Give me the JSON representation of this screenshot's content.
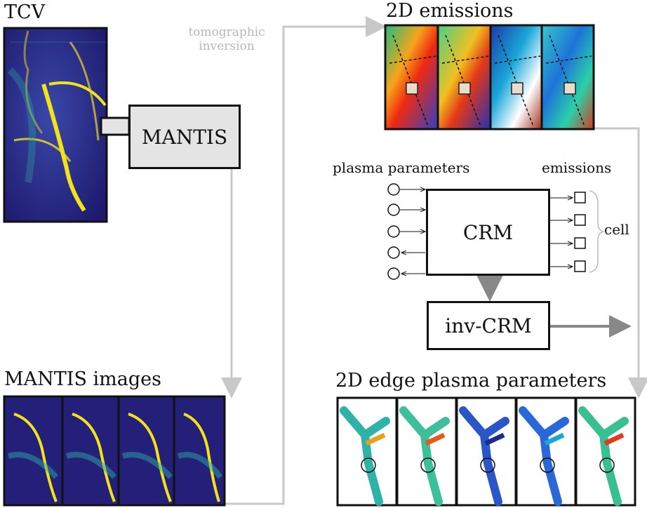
{
  "titles": {
    "tcv": "TCV",
    "emissions2d": "2D emissions",
    "mantis_images": "MANTIS images",
    "edge_params": "2D edge plasma parameters"
  },
  "labels": {
    "tomographic": "tomographic",
    "inversion": "inversion",
    "plasma_parameters": "plasma parameters",
    "emissions": "emissions",
    "cell": "cell"
  },
  "boxes": {
    "mantis": "MANTIS",
    "crm": "CRM",
    "inv_crm": "inv-CRM"
  },
  "colors": {
    "camera_bg": "#2a1f78",
    "camera_yellow": "#f2e21a",
    "camera_teal": "#2aa6a0",
    "flow_arrow": "#c8c8c8",
    "crm_arrow": "#888888",
    "mantis_box_fill": "#e4e4e4"
  },
  "counts": {
    "mantis_images": 4,
    "emission_frames": 4,
    "edge_param_frames": 5,
    "plasma_inputs": 3,
    "plasma_outputs": 2,
    "emission_cells": 4
  }
}
